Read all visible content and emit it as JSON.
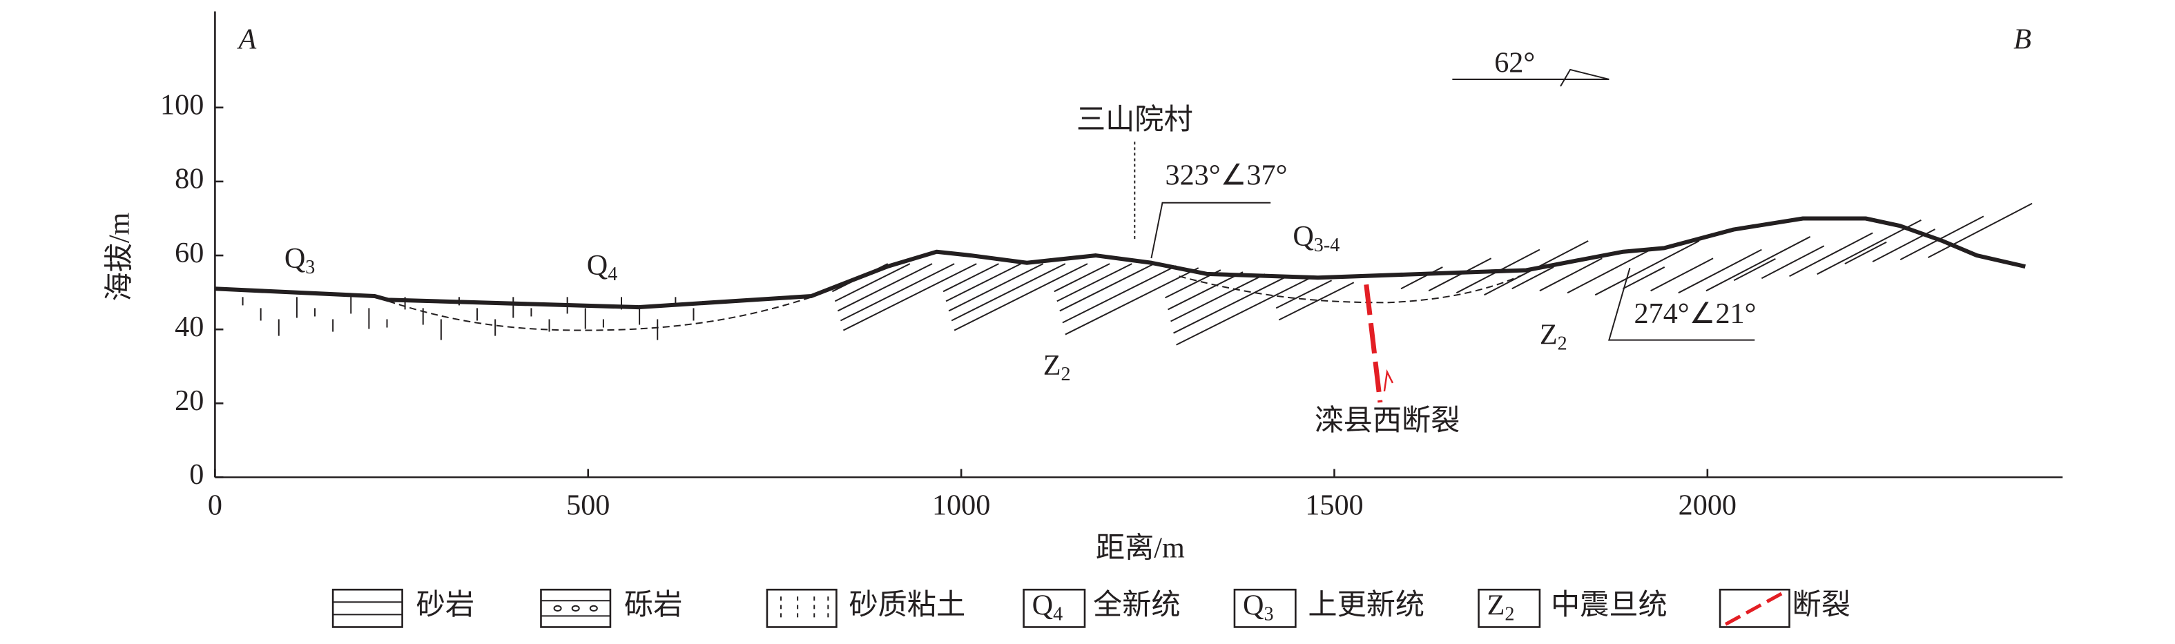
{
  "chart_data": {
    "type": "line",
    "xlabel": "距离/m",
    "ylabel": "海拔/m",
    "x": [
      0,
      214,
      232,
      567,
      799,
      901,
      967,
      1013,
      1088,
      1180,
      1255,
      1329,
      1478,
      1757,
      1887,
      1942,
      2035,
      2128,
      2212,
      2258,
      2314,
      2361,
      2426
    ],
    "values": [
      51,
      49,
      48,
      46,
      49,
      57,
      61,
      60,
      58,
      60,
      58,
      55,
      54,
      56,
      61,
      62,
      67,
      70,
      70,
      68,
      64,
      60,
      57
    ],
    "xlim": [
      0,
      2476
    ],
    "ylim": [
      0,
      126
    ],
    "xticks": [
      0,
      500,
      1000,
      1500,
      2000
    ],
    "yticks": [
      0,
      20,
      40,
      60,
      80,
      100
    ],
    "fault_color": "#e31e24",
    "annotations": {
      "end_a": "A",
      "end_b": "B",
      "azimuth": "62°",
      "village": "三山院村",
      "attitude_1": "323°∠37°",
      "attitude_2": "274°∠21°",
      "fault": "滦县西断裂",
      "q3": {
        "text": "Q",
        "sub": "3"
      },
      "q4": {
        "text": "Q",
        "sub": "4"
      },
      "q34": {
        "text": "Q",
        "sub": "3-4"
      },
      "z2_a": {
        "text": "Z",
        "sub": "2"
      },
      "z2_b": {
        "text": "Z",
        "sub": "2"
      }
    },
    "legend": [
      {
        "label": "砂岩"
      },
      {
        "label": "砾岩"
      },
      {
        "label": "砂质粘土"
      },
      {
        "symbol": "Q",
        "sub": "4",
        "label": "全新统"
      },
      {
        "symbol": "Q",
        "sub": "3",
        "label": "上更新统"
      },
      {
        "symbol": "Z",
        "sub": "2",
        "label": "中震旦统"
      },
      {
        "label": "断裂"
      }
    ]
  }
}
